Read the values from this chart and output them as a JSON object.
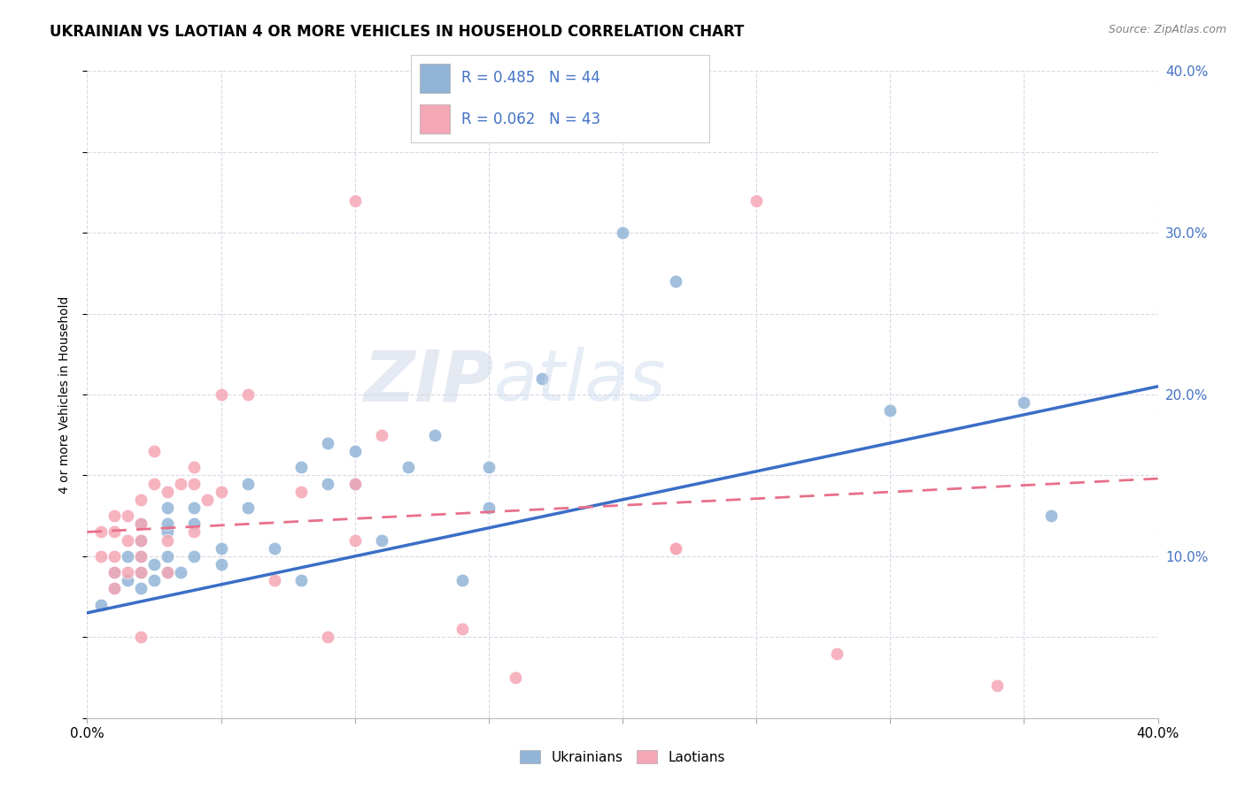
{
  "title": "UKRAINIAN VS LAOTIAN 4 OR MORE VEHICLES IN HOUSEHOLD CORRELATION CHART",
  "source": "Source: ZipAtlas.com",
  "ylabel": "4 or more Vehicles in Household",
  "xlim": [
    0.0,
    0.4
  ],
  "ylim": [
    0.0,
    0.4
  ],
  "xticks": [
    0.0,
    0.05,
    0.1,
    0.15,
    0.2,
    0.25,
    0.3,
    0.35,
    0.4
  ],
  "yticks": [
    0.0,
    0.05,
    0.1,
    0.15,
    0.2,
    0.25,
    0.3,
    0.35,
    0.4
  ],
  "legend_blue_R": "R = 0.485",
  "legend_blue_N": "N = 44",
  "legend_pink_R": "R = 0.062",
  "legend_pink_N": "N = 43",
  "blue_color": "#92B4D7",
  "pink_color": "#F4A7B5",
  "line_blue_color": "#3A6EC7",
  "line_pink_color": "#E8708A",
  "axis_color": "#4472C4",
  "background_color": "#FFFFFF",
  "grid_color": "#D9D9E8",
  "watermark_zip": "ZIP",
  "watermark_atlas": "atlas",
  "blue_scatter_x": [
    0.005,
    0.01,
    0.01,
    0.015,
    0.015,
    0.02,
    0.02,
    0.02,
    0.02,
    0.02,
    0.025,
    0.025,
    0.03,
    0.03,
    0.03,
    0.03,
    0.03,
    0.035,
    0.04,
    0.04,
    0.04,
    0.05,
    0.05,
    0.06,
    0.06,
    0.07,
    0.08,
    0.08,
    0.09,
    0.09,
    0.1,
    0.1,
    0.11,
    0.12,
    0.13,
    0.14,
    0.15,
    0.15,
    0.17,
    0.2,
    0.22,
    0.3,
    0.35,
    0.36
  ],
  "blue_scatter_y": [
    0.07,
    0.08,
    0.09,
    0.085,
    0.1,
    0.08,
    0.09,
    0.1,
    0.11,
    0.12,
    0.085,
    0.095,
    0.09,
    0.1,
    0.115,
    0.12,
    0.13,
    0.09,
    0.1,
    0.12,
    0.13,
    0.095,
    0.105,
    0.13,
    0.145,
    0.105,
    0.085,
    0.155,
    0.145,
    0.17,
    0.145,
    0.165,
    0.11,
    0.155,
    0.175,
    0.085,
    0.13,
    0.155,
    0.21,
    0.3,
    0.27,
    0.19,
    0.195,
    0.125
  ],
  "pink_scatter_x": [
    0.005,
    0.005,
    0.01,
    0.01,
    0.01,
    0.01,
    0.01,
    0.015,
    0.015,
    0.015,
    0.02,
    0.02,
    0.02,
    0.02,
    0.02,
    0.02,
    0.025,
    0.025,
    0.03,
    0.03,
    0.03,
    0.035,
    0.04,
    0.04,
    0.04,
    0.045,
    0.05,
    0.05,
    0.06,
    0.07,
    0.08,
    0.09,
    0.1,
    0.1,
    0.1,
    0.11,
    0.14,
    0.16,
    0.22,
    0.22,
    0.25,
    0.28,
    0.34
  ],
  "pink_scatter_y": [
    0.1,
    0.115,
    0.08,
    0.09,
    0.1,
    0.115,
    0.125,
    0.09,
    0.11,
    0.125,
    0.05,
    0.09,
    0.1,
    0.11,
    0.12,
    0.135,
    0.145,
    0.165,
    0.09,
    0.11,
    0.14,
    0.145,
    0.115,
    0.145,
    0.155,
    0.135,
    0.2,
    0.14,
    0.2,
    0.085,
    0.14,
    0.05,
    0.11,
    0.145,
    0.32,
    0.175,
    0.055,
    0.025,
    0.105,
    0.105,
    0.32,
    0.04,
    0.02
  ],
  "blue_line_x0": 0.0,
  "blue_line_x1": 0.4,
  "blue_line_y0": 0.065,
  "blue_line_y1": 0.205,
  "pink_line_x0": 0.0,
  "pink_line_x1": 0.4,
  "pink_line_y0": 0.115,
  "pink_line_y1": 0.148,
  "title_fontsize": 12,
  "axis_label_fontsize": 10,
  "tick_fontsize": 11,
  "right_tick_color": "#4472C4",
  "source_color": "#808080"
}
